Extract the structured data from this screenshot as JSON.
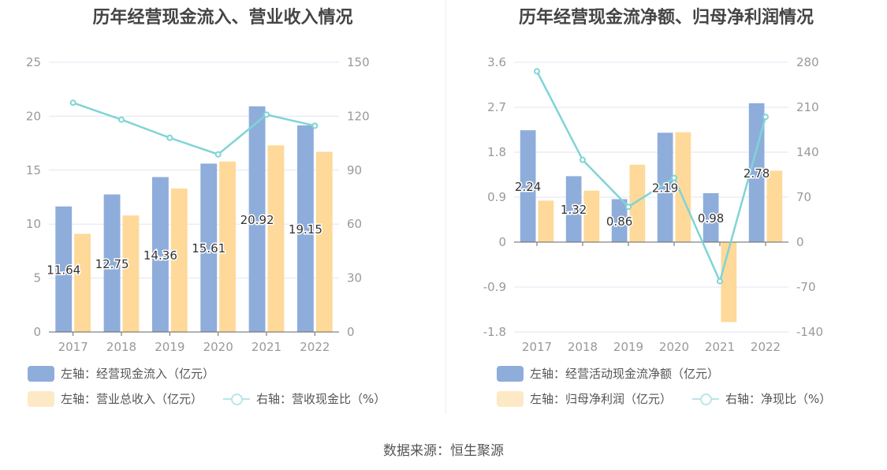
{
  "source": "数据来源：恒生聚源",
  "colors": {
    "blue": "#8eaddb",
    "orange": "#fed999",
    "line": "#7fd4d6",
    "grid": "#e3e6f3",
    "axis": "#666",
    "tick": "#999"
  },
  "chart_data": [
    {
      "type": "bar",
      "title": "历年经营现金流入、营业收入情况",
      "categories": [
        "2017",
        "2018",
        "2019",
        "2020",
        "2021",
        "2022"
      ],
      "left_axis": {
        "ylim": [
          0,
          25
        ],
        "ticks": [
          "0",
          "5",
          "10",
          "15",
          "20",
          "25"
        ]
      },
      "right_axis": {
        "ylim": [
          0,
          150
        ],
        "ticks": [
          "0",
          "30",
          "60",
          "90",
          "120",
          "150"
        ]
      },
      "grid": true,
      "legend_position": "bottom",
      "series": [
        {
          "name": "左轴：经营现金流入（亿元）",
          "type": "bar",
          "axis": "left",
          "values": [
            11.64,
            12.75,
            14.36,
            15.61,
            20.92,
            19.15
          ],
          "labels": [
            "11.64",
            "12.75",
            "14.36",
            "15.61",
            "20.92",
            "19.15"
          ]
        },
        {
          "name": "左轴：营业总收入（亿元）",
          "type": "bar",
          "axis": "left",
          "values": [
            9.1,
            10.8,
            13.3,
            15.8,
            17.3,
            16.7
          ]
        },
        {
          "name": "右轴：营收现金比（%）",
          "type": "line",
          "axis": "right",
          "values": [
            127.5,
            118.1,
            108.0,
            98.8,
            120.9,
            114.7
          ]
        }
      ]
    },
    {
      "type": "bar",
      "title": "历年经营现金流净额、归母净利润情况",
      "categories": [
        "2017",
        "2018",
        "2019",
        "2020",
        "2021",
        "2022"
      ],
      "left_axis": {
        "ylim": [
          -1.8,
          3.6
        ],
        "ticks": [
          "-1.8",
          "-0.9",
          "0",
          "0.9",
          "1.8",
          "2.7",
          "3.6"
        ]
      },
      "right_axis": {
        "ylim": [
          -140,
          280
        ],
        "ticks": [
          "-140",
          "-70",
          "0",
          "70",
          "140",
          "210",
          "280"
        ]
      },
      "grid": true,
      "legend_position": "bottom",
      "series": [
        {
          "name": "左轴：经营活动现金流净额（亿元）",
          "type": "bar",
          "axis": "left",
          "values": [
            2.24,
            1.32,
            0.86,
            2.19,
            0.98,
            2.78
          ],
          "labels": [
            "2.24",
            "1.32",
            "0.86",
            "2.19",
            "0.98",
            "2.78"
          ]
        },
        {
          "name": "左轴：归母净利润（亿元）",
          "type": "bar",
          "axis": "left",
          "values": [
            0.83,
            1.03,
            1.55,
            2.2,
            -1.6,
            1.43
          ]
        },
        {
          "name": "右轴：净现比（%）",
          "type": "line",
          "axis": "right",
          "values": [
            266,
            128,
            55,
            100,
            -61,
            195
          ]
        }
      ]
    }
  ]
}
